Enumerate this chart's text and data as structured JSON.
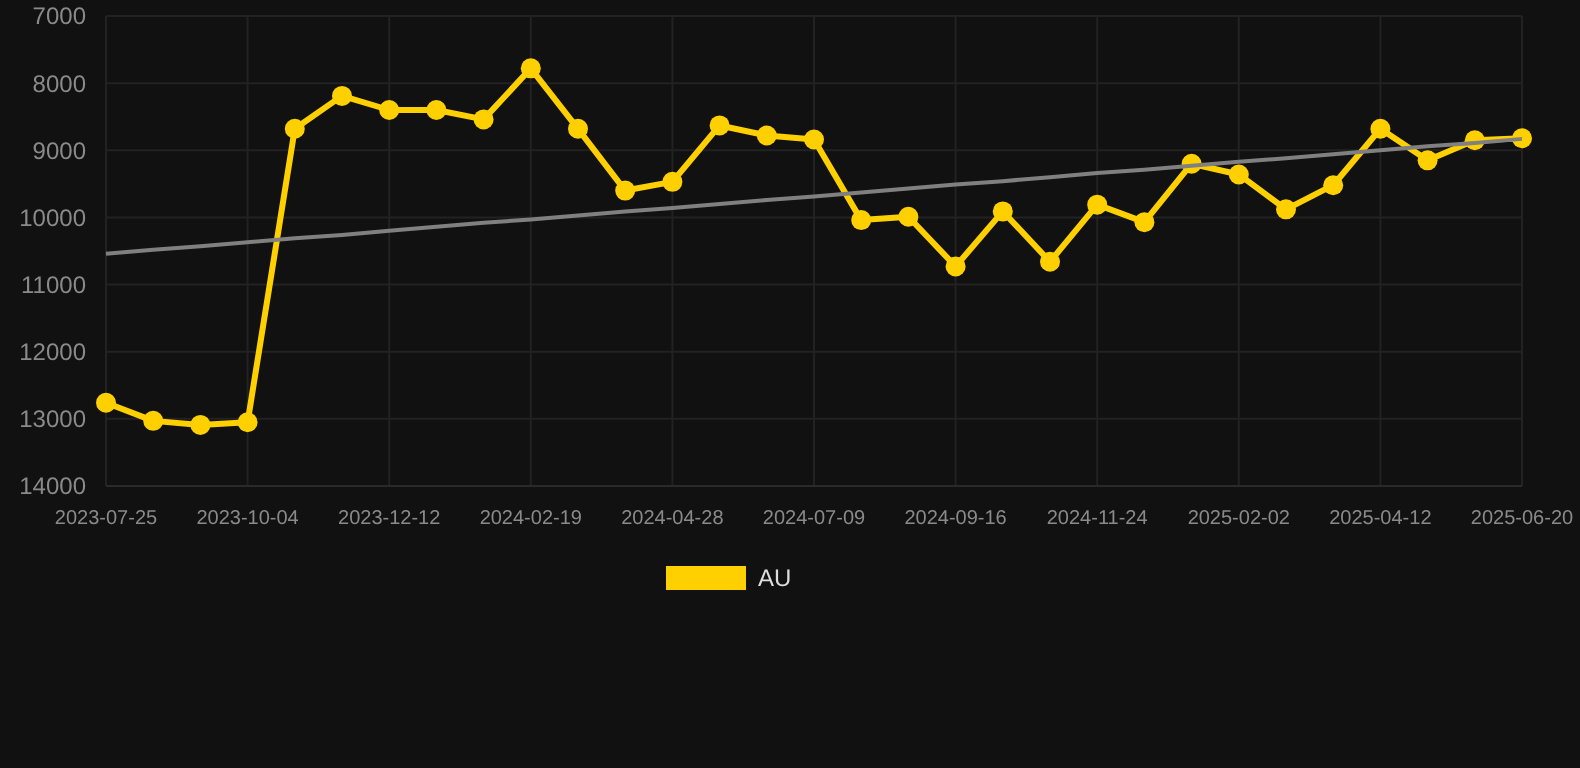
{
  "chart_data": {
    "type": "line",
    "categories": [
      "2023-07-25",
      null,
      null,
      "2023-10-04",
      null,
      null,
      "2023-12-12",
      null,
      null,
      "2024-02-19",
      null,
      null,
      "2024-04-28",
      null,
      null,
      "2024-07-09",
      null,
      null,
      "2024-09-16",
      null,
      null,
      "2024-11-24",
      null,
      null,
      "2025-02-02",
      null,
      null,
      "2025-04-12",
      null,
      null,
      "2025-06-20"
    ],
    "series": [
      {
        "name": "AU",
        "color": "#ffd000",
        "marker": "circle",
        "values": [
          12760,
          13030,
          13090,
          13050,
          8680,
          8190,
          8400,
          8400,
          8540,
          7780,
          8680,
          9600,
          9470,
          8630,
          8780,
          8840,
          10040,
          9990,
          10730,
          9910,
          10660,
          9810,
          10070,
          9200,
          9360,
          9880,
          9520,
          8680,
          9150,
          8850,
          8820
        ]
      },
      {
        "type": "line",
        "color": "#808080",
        "marker": "none",
        "values": [
          10540,
          10480,
          10430,
          10370,
          10310,
          10260,
          10200,
          10140,
          10080,
          10030,
          9970,
          9910,
          9860,
          9800,
          9740,
          9690,
          9630,
          9570,
          9510,
          9460,
          9400,
          9340,
          9290,
          9230,
          9170,
          9120,
          9060,
          9000,
          8940,
          8890,
          8830
        ]
      }
    ],
    "ylim": [
      14000,
      7000
    ],
    "yticks": [
      7000,
      8000,
      9000,
      10000,
      11000,
      12000,
      13000,
      14000
    ],
    "grid": true,
    "legend": "bottom"
  }
}
